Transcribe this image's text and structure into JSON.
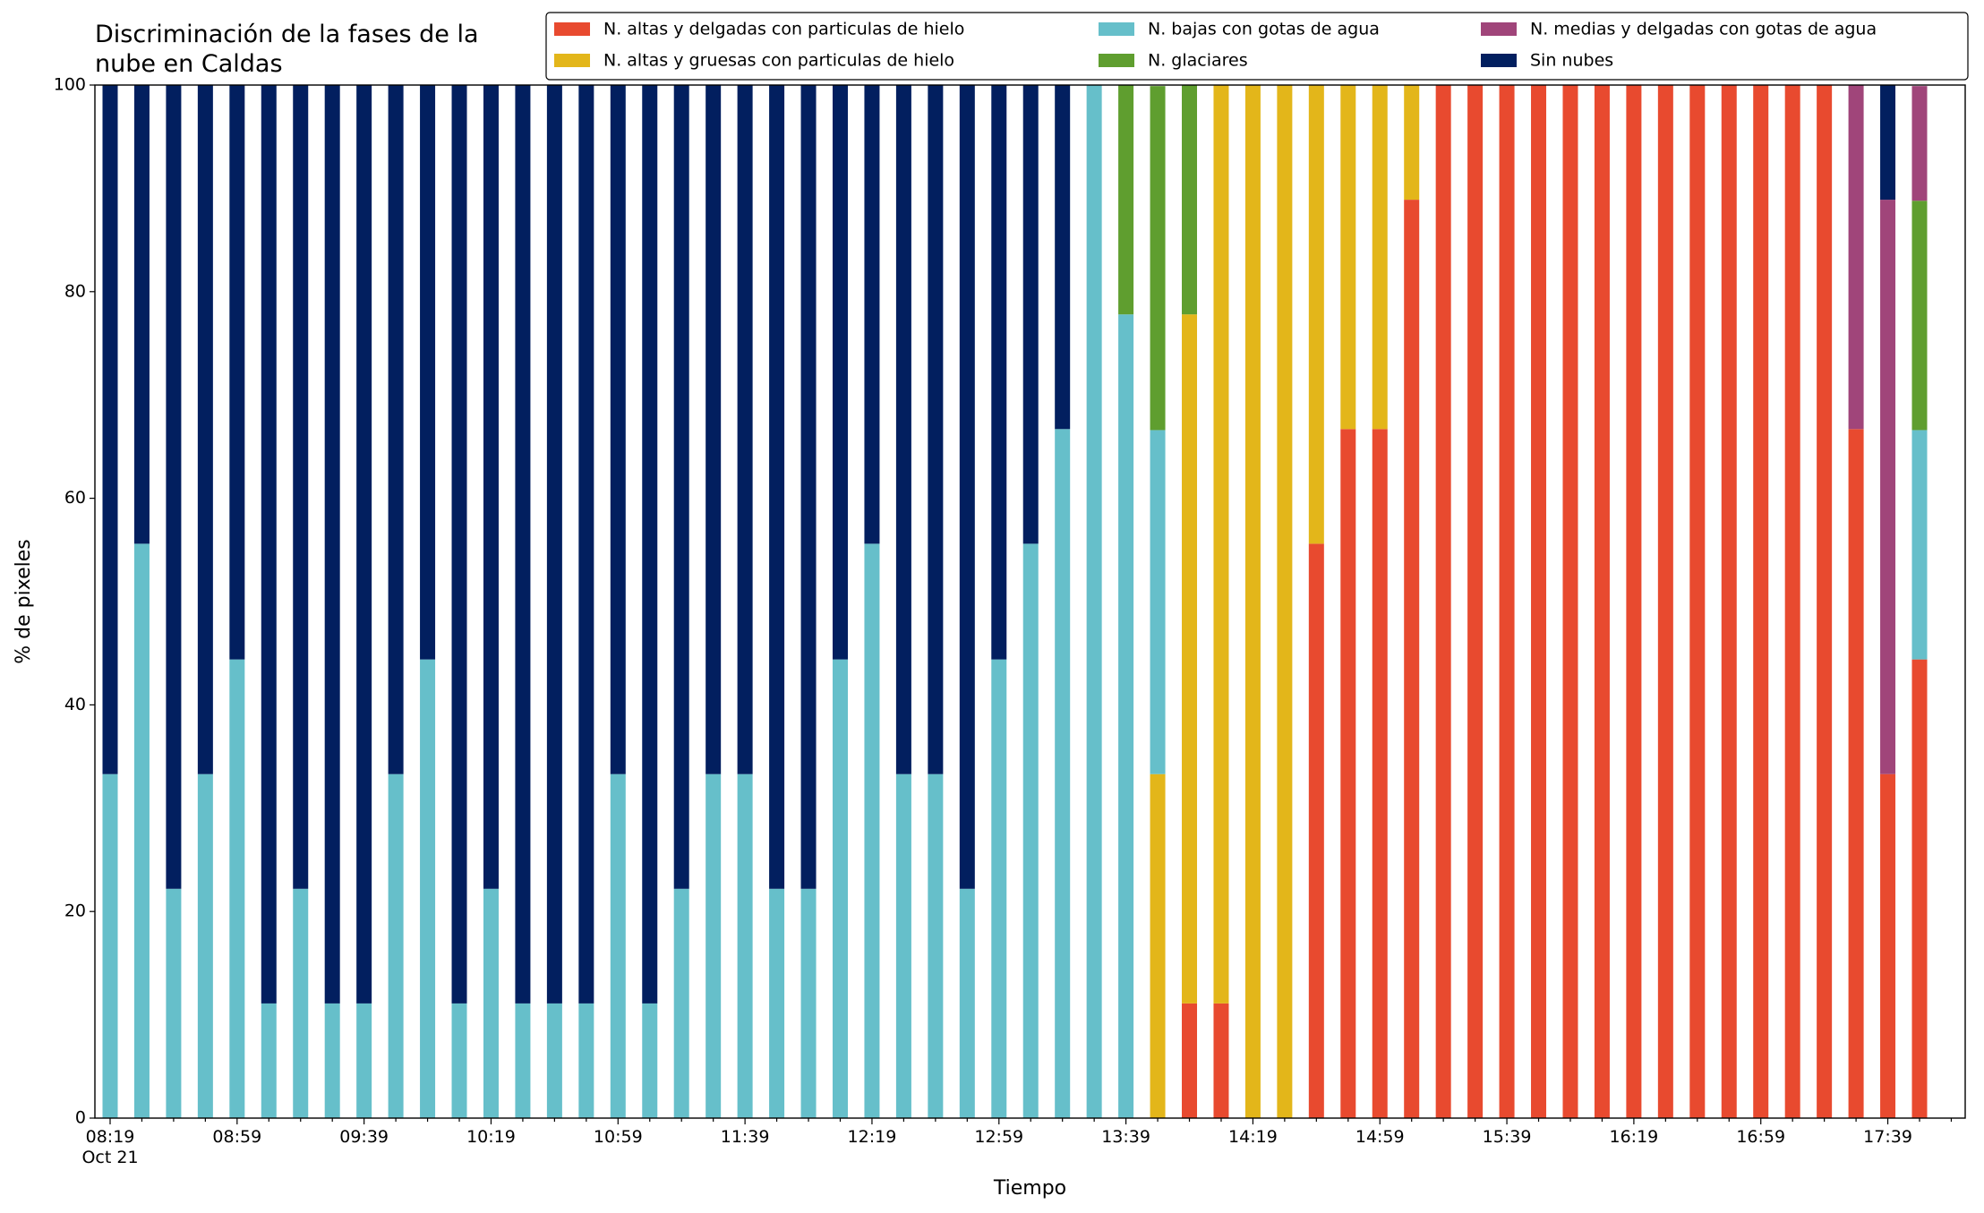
{
  "chart_data": {
    "type": "stacked_bar",
    "title": "Discriminación de la fases de la\nnube en Caldas",
    "x_label": "Tiempo",
    "y_label": "% de pixeles",
    "categories": [
      "08:19\nOct 21",
      null,
      null,
      null,
      "08:59",
      null,
      null,
      null,
      "09:39",
      null,
      null,
      null,
      "10:19",
      null,
      null,
      null,
      "10:59",
      null,
      null,
      null,
      "11:39",
      null,
      null,
      null,
      "12:19",
      null,
      null,
      null,
      "12:59",
      null,
      null,
      null,
      "13:39",
      null,
      null,
      null,
      "14:19",
      null,
      null,
      null,
      "14:59",
      null,
      null,
      null,
      "15:39",
      null,
      null,
      null,
      "16:19",
      null,
      null,
      null,
      "16:59",
      null,
      null,
      null,
      "17:39",
      null
    ],
    "ylim": [
      0,
      100
    ],
    "yticks": [
      0,
      20,
      40,
      60,
      80,
      100
    ],
    "legend": "top-right",
    "series": [
      {
        "name": "N. altas y delgadas con particulas de hielo",
        "color": "#e84a2f",
        "values": [
          0,
          0,
          0,
          0,
          0,
          0,
          0,
          0,
          0,
          0,
          0,
          0,
          0,
          0,
          0,
          0,
          0,
          0,
          0,
          0,
          0,
          0,
          0,
          0,
          0,
          0,
          0,
          0,
          0,
          0,
          0,
          0,
          0,
          0,
          11.1,
          11.1,
          0,
          0,
          55.6,
          66.7,
          66.7,
          88.9,
          100,
          100,
          100,
          100,
          100,
          100,
          100,
          100,
          100,
          100,
          100,
          100,
          100,
          66.7,
          33.3,
          44.4
        ]
      },
      {
        "name": "N. altas y gruesas con particulas de hielo",
        "color": "#e3b61a",
        "values": [
          0,
          0,
          0,
          0,
          0,
          0,
          0,
          0,
          0,
          0,
          0,
          0,
          0,
          0,
          0,
          0,
          0,
          0,
          0,
          0,
          0,
          0,
          0,
          0,
          0,
          0,
          0,
          0,
          0,
          0,
          0,
          0,
          0,
          33.3,
          66.7,
          88.9,
          100,
          100,
          44.4,
          33.3,
          33.3,
          11.1,
          0,
          0,
          0,
          0,
          0,
          0,
          0,
          0,
          0,
          0,
          0,
          0,
          0,
          0,
          0,
          0
        ]
      },
      {
        "name": "N. bajas con gotas de agua",
        "color": "#66bfca",
        "values": [
          33.3,
          55.6,
          22.2,
          33.3,
          44.4,
          11.1,
          22.2,
          11.1,
          11.1,
          33.3,
          44.4,
          11.1,
          22.2,
          11.1,
          11.1,
          11.1,
          33.3,
          11.1,
          22.2,
          33.3,
          33.3,
          22.2,
          22.2,
          44.4,
          55.6,
          33.3,
          33.3,
          22.2,
          44.4,
          55.6,
          66.7,
          100,
          77.8,
          33.3,
          0,
          0,
          0,
          0,
          0,
          0,
          0,
          0,
          0,
          0,
          0,
          0,
          0,
          0,
          0,
          0,
          0,
          0,
          0,
          0,
          0,
          0,
          0,
          22.2
        ]
      },
      {
        "name": "N. glaciares",
        "color": "#5f9e2f",
        "values": [
          0,
          0,
          0,
          0,
          0,
          0,
          0,
          0,
          0,
          0,
          0,
          0,
          0,
          0,
          0,
          0,
          0,
          0,
          0,
          0,
          0,
          0,
          0,
          0,
          0,
          0,
          0,
          0,
          0,
          0,
          0,
          0,
          22.2,
          33.3,
          22.2,
          0,
          0,
          0,
          0,
          0,
          0,
          0,
          0,
          0,
          0,
          0,
          0,
          0,
          0,
          0,
          0,
          0,
          0,
          0,
          0,
          0,
          0,
          22.2
        ]
      },
      {
        "name": "N. medias y delgadas con gotas de agua",
        "color": "#a0457a",
        "values": [
          0,
          0,
          0,
          0,
          0,
          0,
          0,
          0,
          0,
          0,
          0,
          0,
          0,
          0,
          0,
          0,
          0,
          0,
          0,
          0,
          0,
          0,
          0,
          0,
          0,
          0,
          0,
          0,
          0,
          0,
          0,
          0,
          0,
          0,
          0,
          0,
          0,
          0,
          0,
          0,
          0,
          0,
          0,
          0,
          0,
          0,
          0,
          0,
          0,
          0,
          0,
          0,
          0,
          0,
          0,
          33.3,
          55.6,
          11.1
        ]
      },
      {
        "name": "Sin nubes",
        "color": "#021f5f",
        "values": [
          66.7,
          44.4,
          77.8,
          66.7,
          55.6,
          88.9,
          77.8,
          88.9,
          88.9,
          66.7,
          55.6,
          88.9,
          77.8,
          88.9,
          88.9,
          88.9,
          66.7,
          88.9,
          77.8,
          66.7,
          66.7,
          77.8,
          77.8,
          55.6,
          44.4,
          66.7,
          66.7,
          77.8,
          55.6,
          44.4,
          33.3,
          0,
          0,
          0,
          0,
          0,
          0,
          0,
          0,
          0,
          0,
          0,
          0,
          0,
          0,
          0,
          0,
          0,
          0,
          0,
          0,
          0,
          0,
          0,
          0,
          0,
          11.1,
          0
        ]
      }
    ]
  }
}
